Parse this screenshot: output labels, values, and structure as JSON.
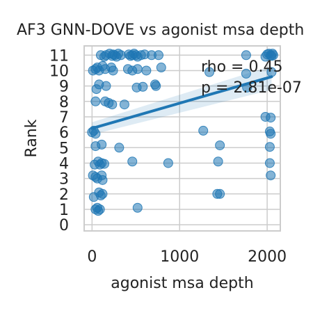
{
  "chart_data": {
    "type": "scatter",
    "title": "AF3 GNN-DOVE vs agonist msa depth",
    "xlabel": "agonist msa depth",
    "ylabel": "Rank",
    "xlim": [
      -90,
      2150
    ],
    "ylim": [
      -0.4,
      11.6
    ],
    "xticks": [
      0,
      1000,
      2000
    ],
    "yticks": [
      0,
      1,
      2,
      3,
      4,
      5,
      6,
      7,
      8,
      9,
      10,
      11
    ],
    "grid": true,
    "legend": "none",
    "annotations": [
      "rho = 0.45",
      "p = 2.81e-07"
    ],
    "colors": {
      "points": "#1f77b4",
      "line": "#1f77b4",
      "ci_band": "#1f77b4",
      "grid": "#cccccc",
      "frame": "#cccccc"
    },
    "regression": {
      "x0": 0,
      "y0": 6.25,
      "x1": 2050,
      "y1": 9.6,
      "ci_low_x0": 5.85,
      "ci_high_x0": 6.65,
      "ci_low_x1": 8.75,
      "ci_high_x1": 10.3
    },
    "points": [
      {
        "x": 40,
        "y": 1.0
      },
      {
        "x": 60,
        "y": 1.1
      },
      {
        "x": 70,
        "y": 0.9
      },
      {
        "x": 90,
        "y": 1.0
      },
      {
        "x": 520,
        "y": 1.1
      },
      {
        "x": 20,
        "y": 1.8
      },
      {
        "x": 80,
        "y": 2.1
      },
      {
        "x": 100,
        "y": 1.9
      },
      {
        "x": 120,
        "y": 2.0
      },
      {
        "x": 1430,
        "y": 2.0
      },
      {
        "x": 1460,
        "y": 2.0
      },
      {
        "x": 10,
        "y": 3.2
      },
      {
        "x": 40,
        "y": 3.1
      },
      {
        "x": 60,
        "y": 3.0
      },
      {
        "x": 110,
        "y": 3.2
      },
      {
        "x": 120,
        "y": 2.9
      },
      {
        "x": 2040,
        "y": 3.2
      },
      {
        "x": 30,
        "y": 3.9
      },
      {
        "x": 70,
        "y": 4.1
      },
      {
        "x": 90,
        "y": 3.9
      },
      {
        "x": 110,
        "y": 4.0
      },
      {
        "x": 140,
        "y": 3.95
      },
      {
        "x": 460,
        "y": 4.1
      },
      {
        "x": 870,
        "y": 4.0
      },
      {
        "x": 1440,
        "y": 4.1
      },
      {
        "x": 2030,
        "y": 4.0
      },
      {
        "x": 40,
        "y": 5.1
      },
      {
        "x": 110,
        "y": 5.2
      },
      {
        "x": 310,
        "y": 5.0
      },
      {
        "x": 1460,
        "y": 5.15
      },
      {
        "x": 2030,
        "y": 5.05
      },
      {
        "x": 0,
        "y": 6.0
      },
      {
        "x": 20,
        "y": 6.1
      },
      {
        "x": 40,
        "y": 5.9
      },
      {
        "x": 1270,
        "y": 6.1
      },
      {
        "x": 2030,
        "y": 6.05
      },
      {
        "x": 2040,
        "y": 5.9
      },
      {
        "x": 1980,
        "y": 7.0
      },
      {
        "x": 2040,
        "y": 6.95
      },
      {
        "x": 40,
        "y": 8.0
      },
      {
        "x": 150,
        "y": 8.0
      },
      {
        "x": 190,
        "y": 7.9
      },
      {
        "x": 230,
        "y": 7.8
      },
      {
        "x": 370,
        "y": 7.8
      },
      {
        "x": 50,
        "y": 8.8
      },
      {
        "x": 80,
        "y": 9.1
      },
      {
        "x": 160,
        "y": 9.0
      },
      {
        "x": 510,
        "y": 8.9
      },
      {
        "x": 580,
        "y": 8.95
      },
      {
        "x": 720,
        "y": 9.1
      },
      {
        "x": 730,
        "y": 9.0
      },
      {
        "x": 1770,
        "y": 8.9
      },
      {
        "x": 10,
        "y": 10.0
      },
      {
        "x": 40,
        "y": 10.1
      },
      {
        "x": 60,
        "y": 10.2
      },
      {
        "x": 80,
        "y": 10.0
      },
      {
        "x": 120,
        "y": 10.3
      },
      {
        "x": 150,
        "y": 10.1
      },
      {
        "x": 220,
        "y": 10.2
      },
      {
        "x": 240,
        "y": 10.0
      },
      {
        "x": 410,
        "y": 10.1
      },
      {
        "x": 460,
        "y": 10.0
      },
      {
        "x": 520,
        "y": 10.1
      },
      {
        "x": 620,
        "y": 10.0
      },
      {
        "x": 790,
        "y": 10.2
      },
      {
        "x": 1340,
        "y": 9.9
      },
      {
        "x": 1760,
        "y": 9.8
      },
      {
        "x": 2050,
        "y": 9.9
      },
      {
        "x": 100,
        "y": 11.0
      },
      {
        "x": 140,
        "y": 10.9
      },
      {
        "x": 160,
        "y": 11.0
      },
      {
        "x": 200,
        "y": 11.1
      },
      {
        "x": 230,
        "y": 10.95
      },
      {
        "x": 240,
        "y": 11.05
      },
      {
        "x": 260,
        "y": 11.0
      },
      {
        "x": 280,
        "y": 10.9
      },
      {
        "x": 300,
        "y": 11.1
      },
      {
        "x": 330,
        "y": 11.0
      },
      {
        "x": 420,
        "y": 11.05
      },
      {
        "x": 440,
        "y": 10.95
      },
      {
        "x": 460,
        "y": 11.0
      },
      {
        "x": 480,
        "y": 11.1
      },
      {
        "x": 500,
        "y": 11.0
      },
      {
        "x": 520,
        "y": 10.9
      },
      {
        "x": 560,
        "y": 11.0
      },
      {
        "x": 600,
        "y": 11.05
      },
      {
        "x": 680,
        "y": 11.0
      },
      {
        "x": 760,
        "y": 11.0
      },
      {
        "x": 1760,
        "y": 11.0
      },
      {
        "x": 1980,
        "y": 10.9
      },
      {
        "x": 2000,
        "y": 11.05
      },
      {
        "x": 2020,
        "y": 11.1
      },
      {
        "x": 2040,
        "y": 11.0
      },
      {
        "x": 2050,
        "y": 10.95
      },
      {
        "x": 2060,
        "y": 11.1
      },
      {
        "x": 2070,
        "y": 11.0
      }
    ]
  }
}
